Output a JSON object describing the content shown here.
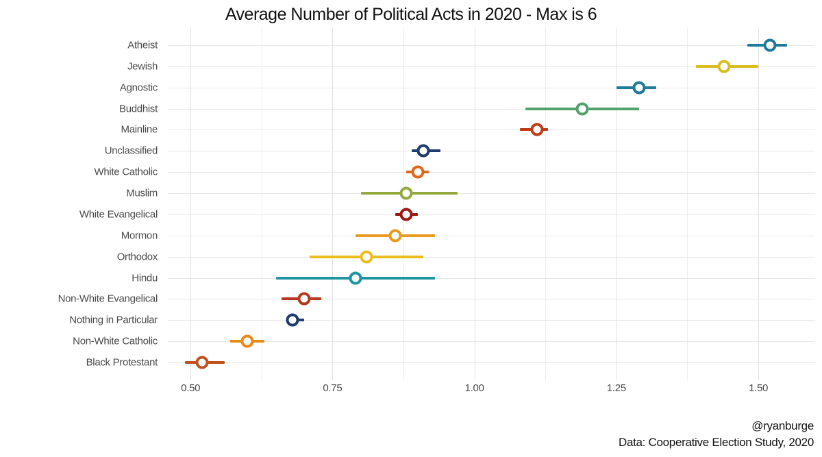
{
  "chart_data": {
    "type": "scatter",
    "subtype": "dot-plot-with-horizontal-error-bars",
    "title": "Average Number of Political Acts in 2020 - Max is 6",
    "xlabel": "",
    "ylabel": "",
    "xlim": [
      0.46,
      1.6
    ],
    "x_major_ticks": [
      0.5,
      0.75,
      1.0,
      1.25,
      1.5
    ],
    "x_tick_labels": [
      "0.50",
      "0.75",
      "1.00",
      "1.25",
      "1.50"
    ],
    "x_minor_ticks": [
      0.625,
      0.875,
      1.125,
      1.375
    ],
    "grid": "light gray; vertical major+minor lines, horizontal line at each category",
    "legend": "none",
    "marker_style": "open circle with white fill on colored confidence-interval line",
    "points": [
      {
        "label": "Atheist",
        "value": 1.52,
        "ci_low": 1.48,
        "ci_high": 1.55,
        "color": "#1F7A9B"
      },
      {
        "label": "Jewish",
        "value": 1.44,
        "ci_low": 1.39,
        "ci_high": 1.5,
        "color": "#D9BD22"
      },
      {
        "label": "Agnostic",
        "value": 1.29,
        "ci_low": 1.25,
        "ci_high": 1.32,
        "color": "#1F7A9B"
      },
      {
        "label": "Buddhist",
        "value": 1.19,
        "ci_low": 1.09,
        "ci_high": 1.29,
        "color": "#55A16B"
      },
      {
        "label": "Mainline",
        "value": 1.11,
        "ci_low": 1.08,
        "ci_high": 1.13,
        "color": "#C23B17"
      },
      {
        "label": "Unclassified",
        "value": 0.91,
        "ci_low": 0.89,
        "ci_high": 0.94,
        "color": "#1E3A6E"
      },
      {
        "label": "White Catholic",
        "value": 0.9,
        "ci_low": 0.88,
        "ci_high": 0.92,
        "color": "#DC691B"
      },
      {
        "label": "Muslim",
        "value": 0.88,
        "ci_low": 0.8,
        "ci_high": 0.97,
        "color": "#94A83F"
      },
      {
        "label": "White Evangelical",
        "value": 0.88,
        "ci_low": 0.86,
        "ci_high": 0.9,
        "color": "#9E1710"
      },
      {
        "label": "Mormon",
        "value": 0.86,
        "ci_low": 0.79,
        "ci_high": 0.93,
        "color": "#E89B20"
      },
      {
        "label": "Orthodox",
        "value": 0.81,
        "ci_low": 0.71,
        "ci_high": 0.91,
        "color": "#EFBC1F"
      },
      {
        "label": "Hindu",
        "value": 0.79,
        "ci_low": 0.65,
        "ci_high": 0.93,
        "color": "#1E95A0"
      },
      {
        "label": "Non-White Evangelical",
        "value": 0.7,
        "ci_low": 0.66,
        "ci_high": 0.73,
        "color": "#B43A1E"
      },
      {
        "label": "Nothing in Particular",
        "value": 0.68,
        "ci_low": 0.67,
        "ci_high": 0.7,
        "color": "#1E3A6E"
      },
      {
        "label": "Non-White Catholic",
        "value": 0.6,
        "ci_low": 0.57,
        "ci_high": 0.63,
        "color": "#E8891B"
      },
      {
        "label": "Black Protestant",
        "value": 0.52,
        "ci_low": 0.49,
        "ci_high": 0.56,
        "color": "#C0511D"
      }
    ]
  },
  "caption": {
    "handle": "@ryanburge",
    "source": "Data: Cooperative Election Study, 2020"
  },
  "colors": {
    "background": "#FFFFFF",
    "grid_major": "#E2E2E2",
    "grid_minor": "#EFEFEF",
    "axis_text": "#4A4A4A",
    "title_text": "#121212"
  }
}
